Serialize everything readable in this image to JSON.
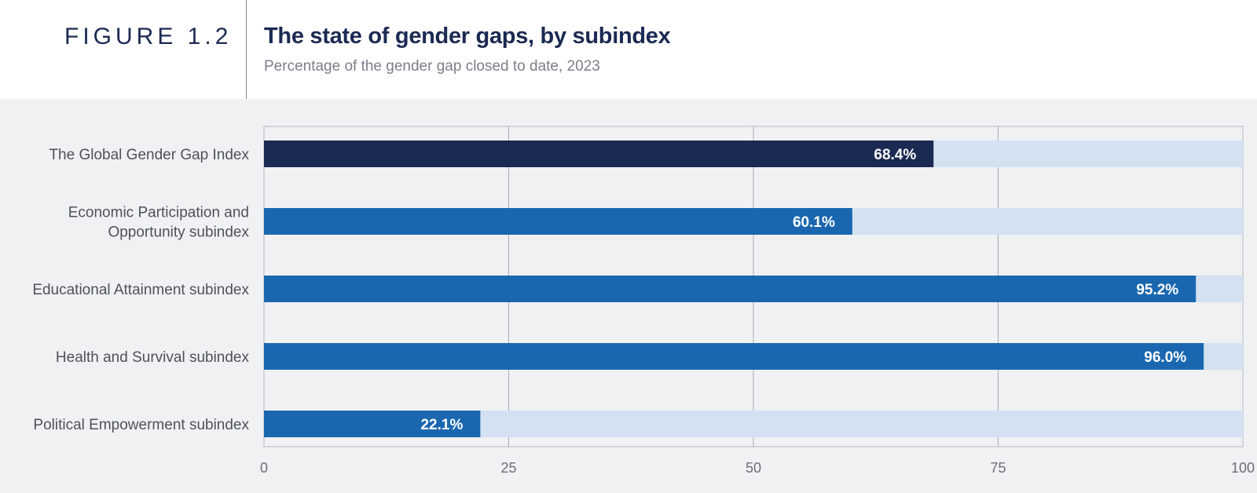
{
  "header": {
    "figure_label": "FIGURE 1.2",
    "title": "The state of gender gaps, by subindex",
    "subtitle": "Percentage of the gender gap closed to date, 2023"
  },
  "colors": {
    "highlight_bar": "#1b2a52",
    "bar": "#1a67b0",
    "remainder": "#d3e1f1",
    "panel_bg": "#f0f1f3"
  },
  "chart_data": {
    "type": "bar",
    "orientation": "horizontal",
    "title": "The state of gender gaps, by subindex",
    "subtitle": "Percentage of the gender gap closed to date, 2023",
    "categories": [
      [
        "The Global Gender Gap Index"
      ],
      [
        "Economic Participation and",
        "Opportunity subindex"
      ],
      [
        "Educational Attainment subindex"
      ],
      [
        "Health and Survival subindex"
      ],
      [
        "Political Empowerment subindex"
      ]
    ],
    "values": [
      68.4,
      60.1,
      95.2,
      96.0,
      22.1
    ],
    "value_labels": [
      "68.4%",
      "60.1%",
      "95.2%",
      "96.0%",
      "22.1%"
    ],
    "highlight_index": 0,
    "xlim": [
      0,
      100
    ],
    "xticks": [
      0,
      25,
      50,
      75,
      100
    ],
    "xtick_labels": [
      "0",
      "25",
      "50",
      "75",
      "100"
    ],
    "grid": true
  }
}
